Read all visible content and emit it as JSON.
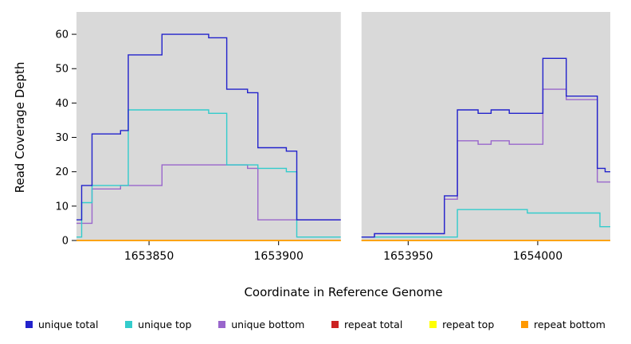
{
  "axes": {
    "ylabel": "Read Coverage Depth",
    "xlabel": "Coordinate in Reference Genome"
  },
  "legend": {
    "items": [
      {
        "label": "unique total",
        "color": "#2222CC"
      },
      {
        "label": "unique top",
        "color": "#33CCCC"
      },
      {
        "label": "unique bottom",
        "color": "#9966CC"
      },
      {
        "label": "repeat total",
        "color": "#CC2222"
      },
      {
        "label": "repeat top",
        "color": "#FFFF00"
      },
      {
        "label": "repeat bottom",
        "color": "#FF9900"
      }
    ]
  },
  "chart_data": {
    "type": "line",
    "subtype": "step-coverage",
    "title": "",
    "xlabel": "Coordinate in Reference Genome",
    "ylabel": "Read Coverage Depth",
    "xlim": [
      1653822,
      1654028
    ],
    "ylim": [
      0,
      66.5
    ],
    "x_ticks": [
      1653850,
      1653900,
      1653950,
      1654000
    ],
    "y_ticks": [
      0,
      10,
      20,
      30,
      40,
      50,
      60
    ],
    "plot_bg": "#D9D9D9",
    "gap_region": [
      1653924,
      1653932
    ],
    "grid": false,
    "legend_position": "bottom",
    "series": [
      {
        "name": "repeat total",
        "color": "#CC2222",
        "segments": [
          [
            [
              1653822,
              0
            ],
            [
              1653924,
              0
            ]
          ],
          [
            [
              1653932,
              0
            ],
            [
              1654028,
              0
            ]
          ]
        ]
      },
      {
        "name": "repeat top",
        "color": "#FFFF00",
        "segments": [
          [
            [
              1653822,
              0
            ],
            [
              1653924,
              0
            ]
          ],
          [
            [
              1653932,
              0
            ],
            [
              1654028,
              0
            ]
          ]
        ]
      },
      {
        "name": "repeat bottom",
        "color": "#FF9900",
        "segments": [
          [
            [
              1653822,
              0
            ],
            [
              1653924,
              0
            ]
          ],
          [
            [
              1653932,
              0
            ],
            [
              1654028,
              0
            ]
          ]
        ]
      },
      {
        "name": "unique bottom",
        "color": "#9966CC",
        "segments": [
          [
            [
              1653822,
              5
            ],
            [
              1653828,
              15
            ],
            [
              1653839,
              16
            ],
            [
              1653855,
              22
            ],
            [
              1653888,
              21
            ],
            [
              1653892,
              6
            ],
            [
              1653924,
              6
            ]
          ],
          [
            [
              1653932,
              1
            ],
            [
              1653937,
              2
            ],
            [
              1653964,
              12
            ],
            [
              1653969,
              29
            ],
            [
              1653977,
              28
            ],
            [
              1653982,
              29
            ],
            [
              1653989,
              28
            ],
            [
              1654002,
              44
            ],
            [
              1654011,
              41
            ],
            [
              1654023,
              17
            ],
            [
              1654028,
              17
            ]
          ]
        ]
      },
      {
        "name": "unique top",
        "color": "#33CCCC",
        "segments": [
          [
            [
              1653822,
              1
            ],
            [
              1653824,
              11
            ],
            [
              1653828,
              16
            ],
            [
              1653842,
              38
            ],
            [
              1653873,
              37
            ],
            [
              1653880,
              22
            ],
            [
              1653892,
              21
            ],
            [
              1653903,
              20
            ],
            [
              1653907,
              1
            ],
            [
              1653924,
              1
            ]
          ],
          [
            [
              1653932,
              1
            ],
            [
              1653969,
              9
            ],
            [
              1653996,
              8
            ],
            [
              1654024,
              4
            ],
            [
              1654028,
              4
            ]
          ]
        ]
      },
      {
        "name": "unique total",
        "color": "#2222CC",
        "segments": [
          [
            [
              1653822,
              6
            ],
            [
              1653824,
              16
            ],
            [
              1653828,
              31
            ],
            [
              1653839,
              32
            ],
            [
              1653842,
              54
            ],
            [
              1653855,
              60
            ],
            [
              1653873,
              59
            ],
            [
              1653880,
              44
            ],
            [
              1653888,
              43
            ],
            [
              1653892,
              27
            ],
            [
              1653903,
              26
            ],
            [
              1653907,
              6
            ],
            [
              1653924,
              6
            ]
          ],
          [
            [
              1653932,
              1
            ],
            [
              1653937,
              2
            ],
            [
              1653964,
              13
            ],
            [
              1653969,
              38
            ],
            [
              1653977,
              37
            ],
            [
              1653982,
              38
            ],
            [
              1653989,
              37
            ],
            [
              1654002,
              53
            ],
            [
              1654011,
              42
            ],
            [
              1654023,
              21
            ],
            [
              1654026,
              20
            ],
            [
              1654028,
              20
            ]
          ]
        ]
      }
    ]
  }
}
